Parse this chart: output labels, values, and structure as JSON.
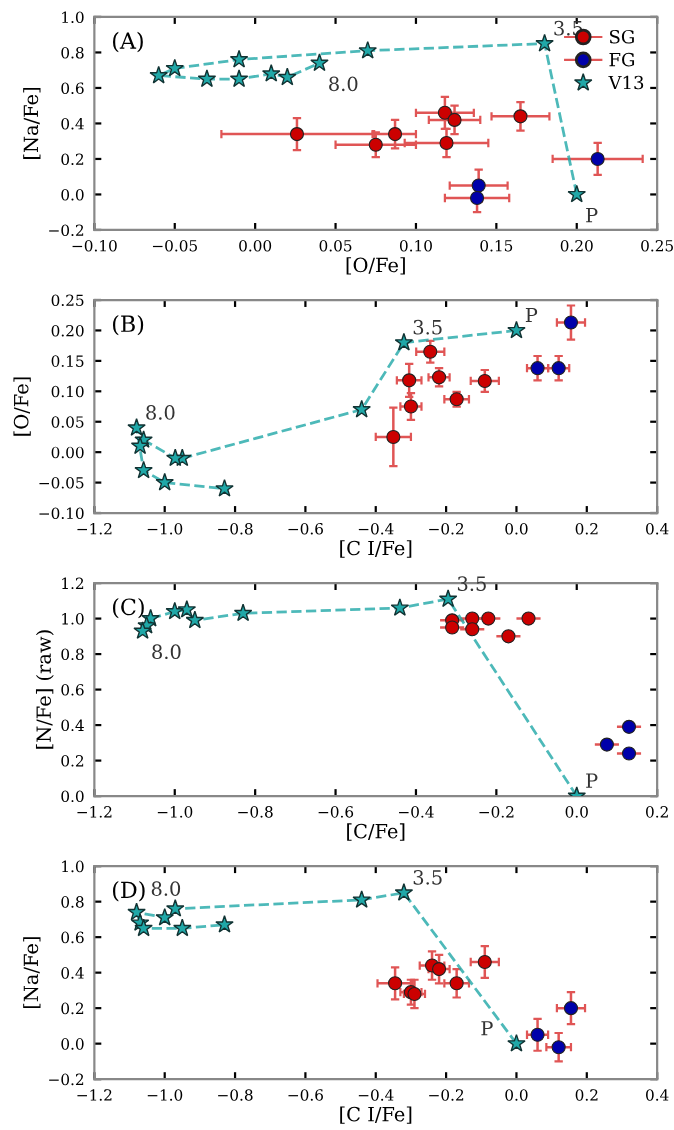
{
  "chart_data": [
    {
      "type": "scatter",
      "xlabel": "[O/Fe]",
      "ylabel": "[Na/Fe]",
      "annotations": [
        "(A)",
        {
          "text": "3.5",
          "x": 0.18,
          "y": 0.85
        },
        {
          "text": "8.0",
          "x": 0.04,
          "y": 0.74
        },
        {
          "text": "P",
          "x": 0.2,
          "y": 0.0
        }
      ],
      "xlim": [
        -0.1,
        0.25
      ],
      "xticks": [
        {
          "value": -0.1,
          "label": "−0.10"
        },
        {
          "value": -0.05,
          "label": "−0.05"
        },
        {
          "value": 0,
          "label": "0.00"
        },
        {
          "value": 0.05,
          "label": "0.05"
        },
        {
          "value": 0.1,
          "label": "0.10"
        },
        {
          "value": 0.15,
          "label": "0.15"
        },
        {
          "value": 0.2,
          "label": "0.20"
        },
        {
          "value": 0.25,
          "label": "0.25"
        }
      ],
      "ylim": [
        -0.2,
        1.0
      ],
      "yticks": [
        {
          "value": -0.2,
          "label": "−0.2"
        },
        {
          "value": 0,
          "label": "0.0"
        },
        {
          "value": 0.2,
          "label": "0.2"
        },
        {
          "value": 0.4,
          "label": "0.4"
        },
        {
          "value": 0.6,
          "label": "0.6"
        },
        {
          "value": 0.8,
          "label": "0.8"
        },
        {
          "value": 1.0,
          "label": "1.0"
        }
      ],
      "grid": false,
      "legend": "top right",
      "series": [
        {
          "name": "SG",
          "type": "scatter",
          "marker": "circle",
          "color": "#cc0000",
          "x": [
            0.026,
            0.075,
            0.087,
            0.118,
            0.124,
            0.119,
            0.165
          ],
          "values": [
            0.34,
            0.28,
            0.34,
            0.46,
            0.42,
            0.29,
            0.44
          ],
          "xerrors": [
            0.047,
            0.025,
            0.013,
            0.018,
            0.016,
            0.026,
            0.018
          ],
          "errors": [
            0.09,
            0.07,
            0.08,
            0.09,
            0.08,
            0.08,
            0.08
          ]
        },
        {
          "name": "FG",
          "type": "scatter",
          "marker": "circle",
          "color": "#0000aa",
          "x": [
            0.139,
            0.138,
            0.213
          ],
          "values": [
            0.05,
            -0.02,
            0.2
          ],
          "xerrors": [
            0.018,
            0.02,
            0.028
          ],
          "errors": [
            0.09,
            0.08,
            0.09
          ]
        },
        {
          "name": "V13",
          "type": "line",
          "marker": "star",
          "line_style": "dashed",
          "color": "#20a8a8",
          "x": [
            0.2,
            0.18,
            0.07,
            -0.01,
            -0.05,
            -0.06,
            -0.03,
            -0.01,
            0.01,
            0.02,
            0.04
          ],
          "values": [
            0.0,
            0.85,
            0.81,
            0.76,
            0.71,
            0.67,
            0.65,
            0.65,
            0.68,
            0.66,
            0.74
          ]
        }
      ]
    },
    {
      "type": "scatter",
      "xlabel": "[C I/Fe]",
      "ylabel": "[O/Fe]",
      "annotations": [
        "(B)",
        {
          "text": "3.5",
          "x": -0.32,
          "y": 0.18
        },
        {
          "text": "8.0",
          "x": -1.08,
          "y": 0.04
        },
        {
          "text": "P",
          "x": 0.0,
          "y": 0.2
        }
      ],
      "xlim": [
        -1.2,
        0.4
      ],
      "xticks": [
        {
          "value": -1.2,
          "label": "−1.2"
        },
        {
          "value": -1.0,
          "label": "−1.0"
        },
        {
          "value": -0.8,
          "label": "−0.8"
        },
        {
          "value": -0.6,
          "label": "−0.6"
        },
        {
          "value": -0.4,
          "label": "−0.4"
        },
        {
          "value": -0.2,
          "label": "−0.2"
        },
        {
          "value": 0,
          "label": "0.0"
        },
        {
          "value": 0.2,
          "label": "0.2"
        },
        {
          "value": 0.4,
          "label": "0.4"
        }
      ],
      "ylim": [
        -0.1,
        0.25
      ],
      "yticks": [
        {
          "value": -0.1,
          "label": "−0.10"
        },
        {
          "value": -0.05,
          "label": "−0.05"
        },
        {
          "value": 0,
          "label": "0.00"
        },
        {
          "value": 0.05,
          "label": "0.05"
        },
        {
          "value": 0.1,
          "label": "0.10"
        },
        {
          "value": 0.15,
          "label": "0.15"
        },
        {
          "value": 0.2,
          "label": "0.20"
        },
        {
          "value": 0.25,
          "label": "0.25"
        }
      ],
      "grid": false,
      "series": [
        {
          "type": "scatter",
          "marker": "circle",
          "color": "#cc0000",
          "x": [
            -0.35,
            -0.3,
            -0.305,
            -0.245,
            -0.22,
            -0.17,
            -0.09
          ],
          "values": [
            0.025,
            0.075,
            0.118,
            0.165,
            0.123,
            0.087,
            0.117
          ],
          "xerrors": [
            0.05,
            0.03,
            0.035,
            0.04,
            0.03,
            0.035,
            0.04
          ],
          "errors": [
            0.048,
            0.022,
            0.027,
            0.018,
            0.015,
            0.012,
            0.018
          ]
        },
        {
          "type": "scatter",
          "marker": "circle",
          "color": "#0000aa",
          "x": [
            0.06,
            0.12,
            0.155
          ],
          "values": [
            0.138,
            0.138,
            0.213
          ],
          "xerrors": [
            0.03,
            0.03,
            0.04
          ],
          "errors": [
            0.02,
            0.02,
            0.028
          ]
        },
        {
          "type": "line",
          "marker": "star",
          "line_style": "dashed",
          "color": "#20a8a8",
          "x": [
            0.0,
            -0.32,
            -0.44,
            -0.95,
            -0.97,
            -1.06,
            -1.07,
            -1.08,
            -1.06,
            -1.0,
            -0.83
          ],
          "values": [
            0.2,
            0.18,
            0.07,
            -0.01,
            -0.01,
            0.02,
            0.01,
            0.04,
            -0.03,
            -0.05,
            -0.06
          ]
        }
      ]
    },
    {
      "type": "scatter",
      "xlabel": "[C/Fe]",
      "ylabel": "[N/Fe] (raw)",
      "annotations": [
        "(C)",
        {
          "text": "3.5",
          "x": -0.32,
          "y": 1.11
        },
        {
          "text": "8.0",
          "x": -1.08,
          "y": 0.93
        },
        {
          "text": "P",
          "x": 0.0,
          "y": 0.0
        }
      ],
      "xlim": [
        -1.2,
        0.2
      ],
      "xticks": [
        {
          "value": -1.2,
          "label": "−1.2"
        },
        {
          "value": -1.0,
          "label": "−1.0"
        },
        {
          "value": -0.8,
          "label": "−0.8"
        },
        {
          "value": -0.6,
          "label": "−0.6"
        },
        {
          "value": -0.4,
          "label": "−0.4"
        },
        {
          "value": -0.2,
          "label": "−0.2"
        },
        {
          "value": 0,
          "label": "0.0"
        },
        {
          "value": 0.2,
          "label": "0.2"
        }
      ],
      "ylim": [
        0.0,
        1.2
      ],
      "yticks": [
        {
          "value": 0,
          "label": "0.0"
        },
        {
          "value": 0.2,
          "label": "0.2"
        },
        {
          "value": 0.4,
          "label": "0.4"
        },
        {
          "value": 0.6,
          "label": "0.6"
        },
        {
          "value": 0.8,
          "label": "0.8"
        },
        {
          "value": 1.0,
          "label": "1.0"
        },
        {
          "value": 1.2,
          "label": "1.2"
        }
      ],
      "grid": false,
      "series": [
        {
          "type": "scatter",
          "marker": "circle",
          "color": "#cc0000",
          "x": [
            -0.31,
            -0.31,
            -0.26,
            -0.26,
            -0.22,
            -0.17,
            -0.12
          ],
          "values": [
            0.99,
            0.95,
            1.0,
            0.94,
            1.0,
            0.9,
            1.0
          ],
          "xerrors": [
            0.03,
            0.03,
            0.03,
            0.03,
            0.03,
            0.03,
            0.03
          ]
        },
        {
          "type": "scatter",
          "marker": "circle",
          "color": "#0000aa",
          "x": [
            0.075,
            0.13,
            0.13
          ],
          "values": [
            0.29,
            0.39,
            0.24
          ],
          "xerrors": [
            0.03,
            0.03,
            0.03
          ]
        },
        {
          "type": "line",
          "marker": "star",
          "line_style": "dashed",
          "color": "#20a8a8",
          "x": [
            0.0,
            -0.32,
            -0.44,
            -0.83,
            -0.95,
            -0.97,
            -1.0,
            -1.06,
            -1.07,
            -1.08
          ],
          "values": [
            0.0,
            1.11,
            1.06,
            1.03,
            0.99,
            1.05,
            1.04,
            1.0,
            0.96,
            0.93
          ]
        }
      ]
    },
    {
      "type": "scatter",
      "xlabel": "[C I/Fe]",
      "ylabel": "[Na/Fe]",
      "annotations": [
        "(D)",
        {
          "text": "3.5",
          "x": -0.32,
          "y": 0.85
        },
        {
          "text": "8.0",
          "x": -1.08,
          "y": 0.74
        },
        {
          "text": "P",
          "x": 0.0,
          "y": 0.0
        }
      ],
      "xlim": [
        -1.2,
        0.4
      ],
      "xticks": [
        {
          "value": -1.2,
          "label": "−1.2"
        },
        {
          "value": -1.0,
          "label": "−1.0"
        },
        {
          "value": -0.8,
          "label": "−0.8"
        },
        {
          "value": -0.6,
          "label": "−0.6"
        },
        {
          "value": -0.4,
          "label": "−0.4"
        },
        {
          "value": -0.2,
          "label": "−0.2"
        },
        {
          "value": 0,
          "label": "0.0"
        },
        {
          "value": 0.2,
          "label": "0.2"
        },
        {
          "value": 0.4,
          "label": "0.4"
        }
      ],
      "ylim": [
        -0.2,
        1.0
      ],
      "yticks": [
        {
          "value": -0.2,
          "label": "−0.2"
        },
        {
          "value": 0,
          "label": "0.0"
        },
        {
          "value": 0.2,
          "label": "0.2"
        },
        {
          "value": 0.4,
          "label": "0.4"
        },
        {
          "value": 0.6,
          "label": "0.6"
        },
        {
          "value": 0.8,
          "label": "0.8"
        },
        {
          "value": 1.0,
          "label": "1.0"
        }
      ],
      "grid": false,
      "series": [
        {
          "type": "scatter",
          "marker": "circle",
          "color": "#cc0000",
          "x": [
            -0.345,
            -0.3,
            -0.29,
            -0.24,
            -0.22,
            -0.17,
            -0.09
          ],
          "values": [
            0.34,
            0.29,
            0.28,
            0.44,
            0.42,
            0.34,
            0.46
          ],
          "xerrors": [
            0.05,
            0.03,
            0.03,
            0.035,
            0.03,
            0.035,
            0.04
          ],
          "errors": [
            0.09,
            0.07,
            0.08,
            0.08,
            0.08,
            0.08,
            0.09
          ]
        },
        {
          "type": "scatter",
          "marker": "circle",
          "color": "#0000aa",
          "x": [
            0.06,
            0.12,
            0.155
          ],
          "values": [
            0.05,
            -0.02,
            0.2
          ],
          "xerrors": [
            0.03,
            0.035,
            0.04
          ],
          "errors": [
            0.09,
            0.08,
            0.09
          ]
        },
        {
          "type": "line",
          "marker": "star",
          "line_style": "dashed",
          "color": "#20a8a8",
          "x": [
            0.0,
            -0.32,
            -0.44,
            -0.97,
            -1.0,
            -1.08,
            -1.07,
            -1.06,
            -0.95,
            -0.83
          ],
          "values": [
            0.0,
            0.85,
            0.81,
            0.76,
            0.71,
            0.74,
            0.68,
            0.65,
            0.65,
            0.67
          ]
        }
      ]
    }
  ]
}
